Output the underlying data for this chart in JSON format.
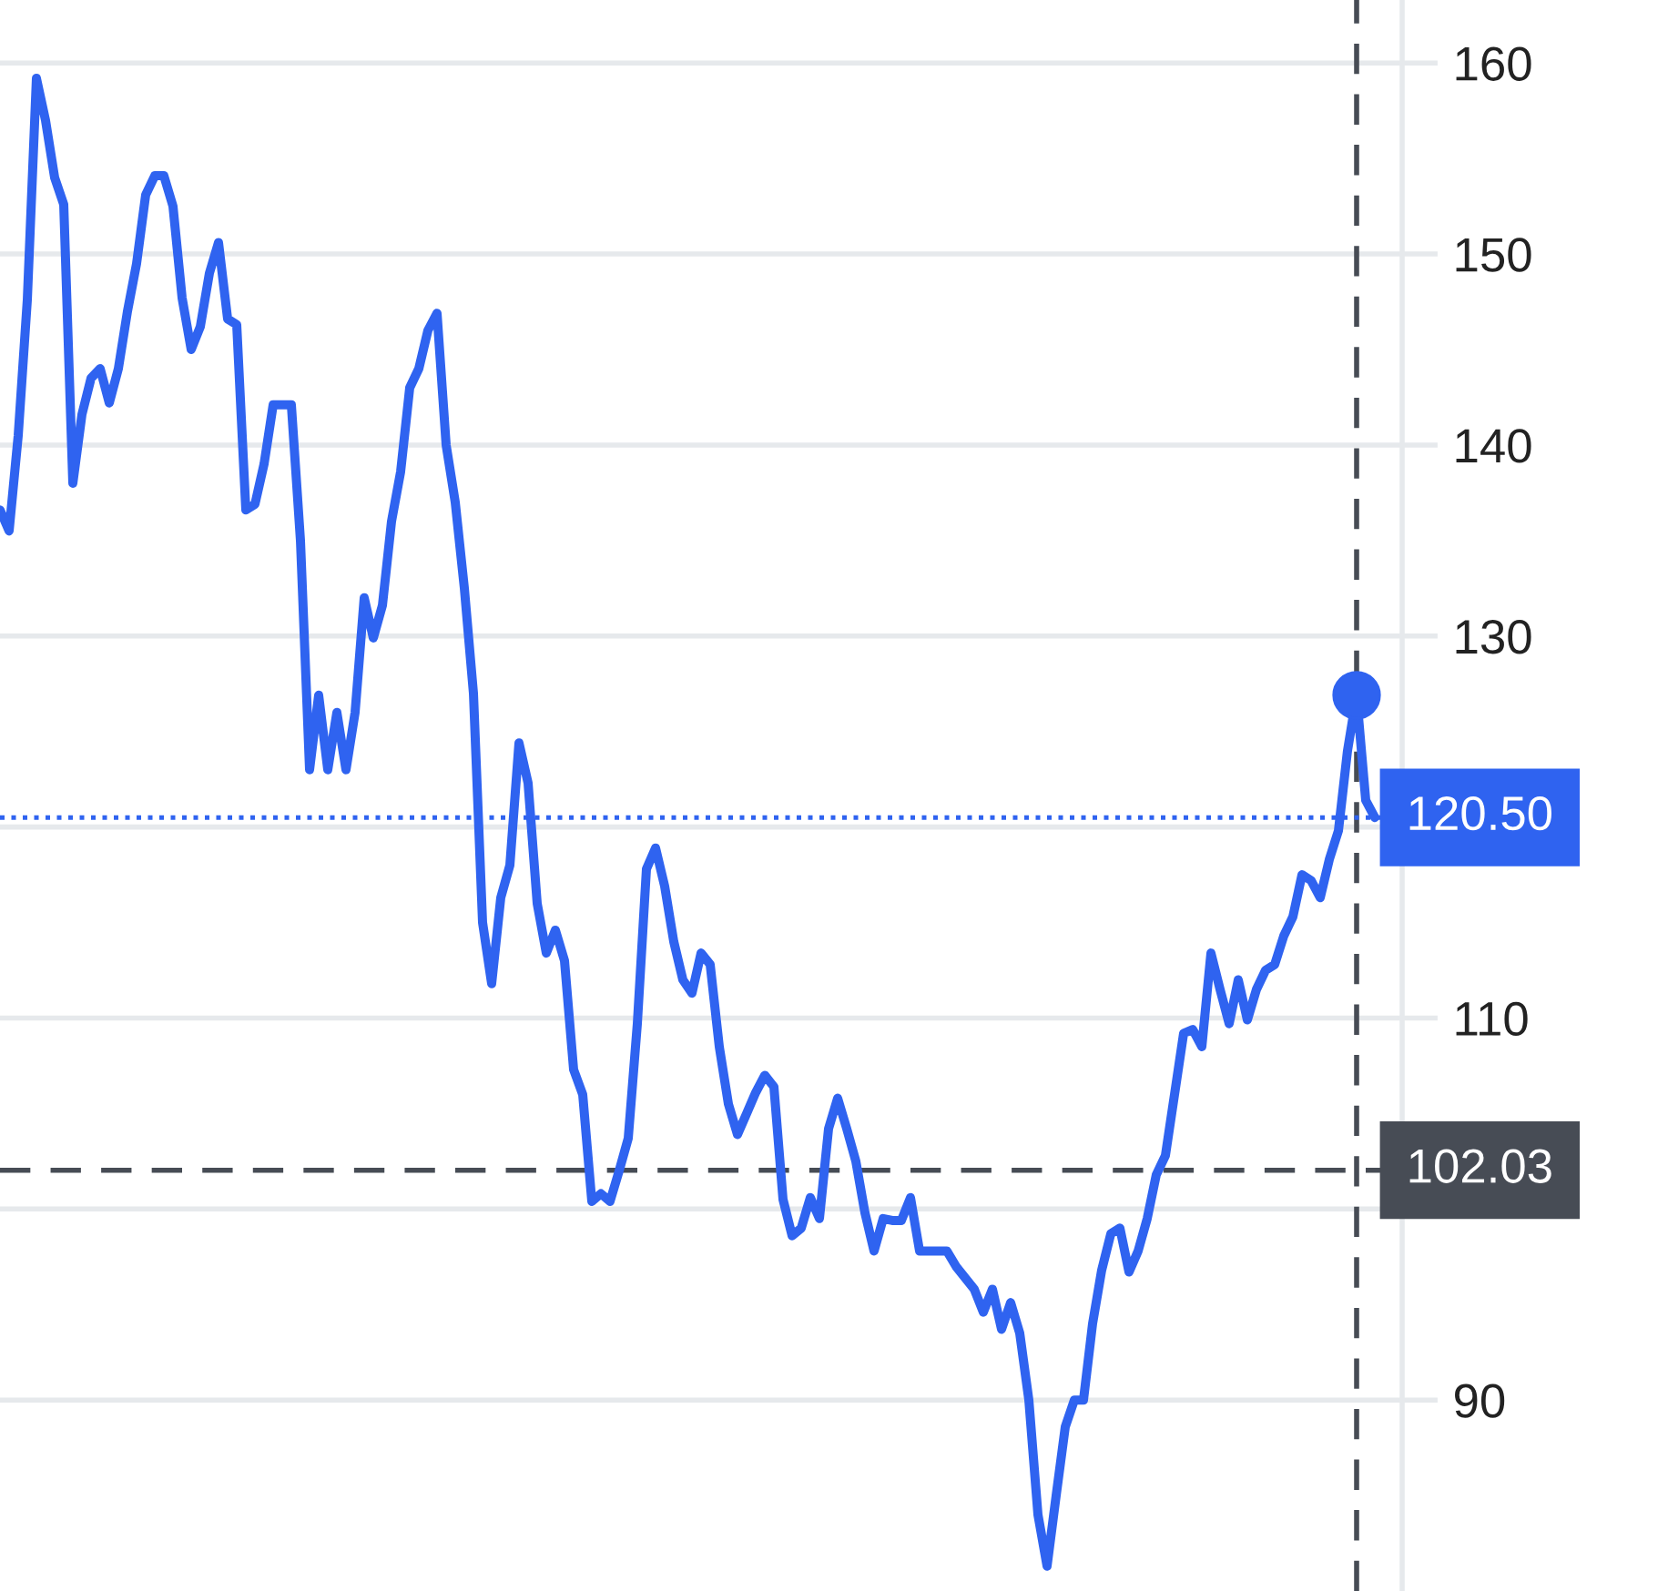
{
  "chart_data": {
    "type": "line",
    "categories": [
      null,
      null,
      null,
      null,
      null,
      null,
      null,
      null,
      null,
      null,
      null,
      null,
      null,
      null,
      null,
      null,
      null,
      null,
      null,
      null,
      null,
      null,
      null,
      null,
      null,
      null,
      null,
      null,
      null,
      null,
      null,
      null,
      null,
      null,
      null,
      null,
      null,
      null,
      null,
      null,
      null,
      null,
      null,
      null,
      null,
      null,
      null,
      null,
      null,
      null,
      null,
      null,
      null,
      null,
      null,
      null,
      null,
      null,
      null,
      null,
      null,
      null,
      null,
      null,
      null,
      null,
      null,
      null,
      null,
      null,
      null,
      null,
      null,
      null,
      null,
      null,
      null,
      null,
      null,
      null,
      null,
      null,
      null,
      null,
      null,
      null,
      null,
      null,
      null,
      null,
      null,
      null,
      null,
      null,
      null,
      null,
      null,
      null,
      null,
      null,
      null,
      null,
      null,
      null,
      null,
      null,
      null,
      null,
      null,
      null,
      null,
      null,
      null,
      null,
      null,
      null,
      null,
      null,
      null,
      null,
      null,
      null,
      null,
      null,
      null,
      null,
      null,
      null,
      null,
      null,
      null,
      null,
      null,
      null,
      null,
      null,
      null,
      null,
      null,
      null,
      null,
      null,
      null,
      null,
      null,
      null,
      null,
      null,
      null,
      null,
      null,
      null
    ],
    "ylim": [
      80,
      163.3
    ],
    "yticks": [
      90,
      {
        "value": 100,
        "label": null
      },
      110,
      {
        "value": 120,
        "label": null
      },
      130,
      140,
      150,
      160
    ],
    "tick_labels": "y",
    "grid": "y",
    "line_style": "solid",
    "series": [
      {
        "color": "#2f63f0",
        "values": [
          136.6,
          135.5,
          140.5,
          147.6,
          159.2,
          157.0,
          154.0,
          152.6,
          138.0,
          141.6,
          143.5,
          144.0,
          142.2,
          144.0,
          147.0,
          149.5,
          153.1,
          154.1,
          154.1,
          152.5,
          147.7,
          145.0,
          146.2,
          149.0,
          150.6,
          146.6,
          146.3,
          136.6,
          136.9,
          139.0,
          142.1,
          142.1,
          142.1,
          135.0,
          123.0,
          126.9,
          123.0,
          126.0,
          123.0,
          126.0,
          132.0,
          129.9,
          131.6,
          136.0,
          138.6,
          143.0,
          144.0,
          146.0,
          146.9,
          140.0,
          137.0,
          132.5,
          127.0,
          115.0,
          111.8,
          116.3,
          118.0,
          124.4,
          122.3,
          116.0,
          113.4,
          114.6,
          113.0,
          107.3,
          106.0,
          100.4,
          100.8,
          100.4,
          102.0,
          103.7,
          109.7,
          117.8,
          118.9,
          116.9,
          114.0,
          112.0,
          111.3,
          113.4,
          112.8,
          108.5,
          105.5,
          103.9,
          105.0,
          106.1,
          107.0,
          106.4,
          100.5,
          98.6,
          99.0,
          100.6,
          99.5,
          104.2,
          105.8,
          104.2,
          102.5,
          99.8,
          97.8,
          99.5,
          99.4,
          99.4,
          100.6,
          97.8,
          97.8,
          97.8,
          97.8,
          97.0,
          96.4,
          95.8,
          94.6,
          95.8,
          93.7,
          95.1,
          93.5,
          90.0,
          84.0,
          81.3,
          85.0,
          88.6,
          90.0,
          90.0,
          94.0,
          96.8,
          98.7,
          99.0,
          96.7,
          97.8,
          99.5,
          101.8,
          102.8,
          106.0,
          109.2,
          109.4,
          108.5,
          113.4,
          111.5,
          109.7,
          112.0,
          109.9,
          111.5,
          112.5,
          112.8,
          114.3,
          115.3,
          117.5,
          117.2,
          116.3,
          118.3,
          119.8,
          124.0,
          126.9,
          121.4,
          120.5
        ]
      },
      {
        "type": "scatter",
        "color": "#2f63f0",
        "marker": "circle",
        "values": [
          null,
          null,
          null,
          null,
          null,
          null,
          null,
          null,
          null,
          null,
          null,
          null,
          null,
          null,
          null,
          null,
          null,
          null,
          null,
          null,
          null,
          null,
          null,
          null,
          null,
          null,
          null,
          null,
          null,
          null,
          null,
          null,
          null,
          null,
          null,
          null,
          null,
          null,
          null,
          null,
          null,
          null,
          null,
          null,
          null,
          null,
          null,
          null,
          null,
          null,
          null,
          null,
          null,
          null,
          null,
          null,
          null,
          null,
          null,
          null,
          null,
          null,
          null,
          null,
          null,
          null,
          null,
          null,
          null,
          null,
          null,
          null,
          null,
          null,
          null,
          null,
          null,
          null,
          null,
          null,
          null,
          null,
          null,
          null,
          null,
          null,
          null,
          null,
          null,
          null,
          null,
          null,
          null,
          null,
          null,
          null,
          null,
          null,
          null,
          null,
          null,
          null,
          null,
          null,
          null,
          null,
          null,
          null,
          null,
          null,
          null,
          null,
          null,
          null,
          null,
          null,
          null,
          null,
          null,
          null,
          null,
          null,
          null,
          null,
          null,
          null,
          null,
          null,
          null,
          null,
          null,
          null,
          null,
          null,
          null,
          null,
          null,
          null,
          null,
          null,
          null,
          null,
          null,
          null,
          null,
          null,
          null,
          null,
          null,
          126.9,
          null,
          null
        ]
      }
    ],
    "ref_lines": [
      {
        "axis": "y",
        "value": 120.5,
        "label": "120.50",
        "color": "#2f63f0",
        "line_style": "dotted"
      },
      {
        "axis": "y",
        "value": 102.03,
        "label": "102.03",
        "color": "#474c55",
        "line_style": "dashed"
      }
    ]
  }
}
